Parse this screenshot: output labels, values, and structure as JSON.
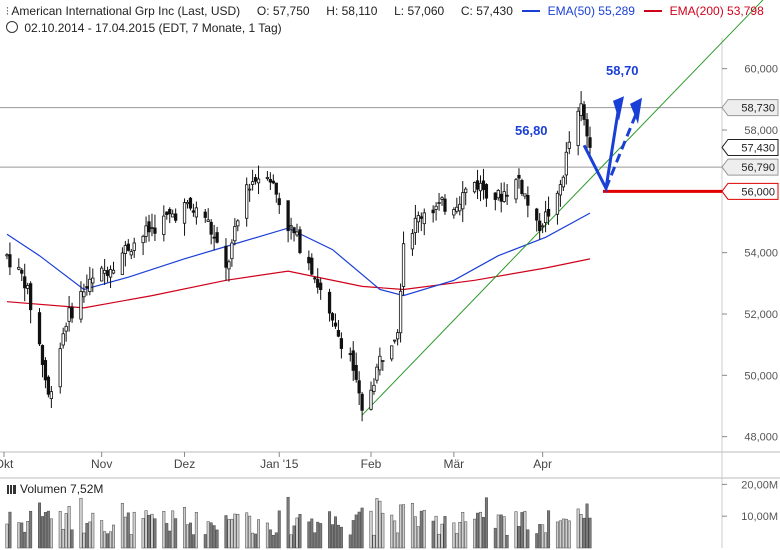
{
  "header": {
    "icon": "candlestick-icon",
    "title": "American International Grp Inc (Last, USD)",
    "open": "O: 57,750",
    "high": "H: 58,110",
    "low": "L: 57,060",
    "close": "C: 57,430",
    "ema50_label": "EMA(50)",
    "ema50_value": "55,289",
    "ema200_label": "EMA(200)",
    "ema200_value": "53,798",
    "clock_icon": "clock-icon",
    "range": "02.10.2014 - 17.04.2015 (EDT, 7 Monate, 1 Tag)"
  },
  "annotations": {
    "level_5680": "56,80",
    "target_5870": "58,70"
  },
  "volume": {
    "icon": "bar-chart-icon",
    "label": "Volumen",
    "value": "7,52M",
    "ticks": [
      "20,00M",
      "10,00M"
    ]
  },
  "colors": {
    "ema50": "#1a3fd6",
    "ema200": "#d0021b",
    "trendline": "#2e9a2e",
    "arrow": "#1a3fd6",
    "support": "#e00000",
    "candle": "#111111",
    "volume_bar": "#7a7a7a"
  },
  "chart_data": {
    "type": "candlestick",
    "title": "American International Grp Inc (Last, USD)",
    "x_range": [
      "02.10.2014",
      "17.04.2015"
    ],
    "ylim": [
      47.5,
      61.0
    ],
    "yticks": [
      "60,000",
      "58,000",
      "54,000",
      "52,000",
      "50,000",
      "48,000"
    ],
    "xticks": [
      "Okt",
      "Nov",
      "Dez",
      "Jan '15",
      "Feb",
      "Mär",
      "Apr"
    ],
    "price_labels": [
      "58,730",
      "57,430",
      "56,790",
      "56,000"
    ],
    "horizontal_levels": [
      58.73,
      56.79
    ],
    "support_level": 56.0,
    "last": {
      "open": 57.75,
      "high": 58.11,
      "low": 57.06,
      "close": 57.43
    },
    "ema50_last": 55.289,
    "ema200_last": 53.798,
    "close_path": [
      {
        "date": "2014-10-02",
        "close": 53.9
      },
      {
        "date": "2014-10-08",
        "close": 53.1
      },
      {
        "date": "2014-10-13",
        "close": 51.0
      },
      {
        "date": "2014-10-16",
        "close": 49.3
      },
      {
        "date": "2014-10-22",
        "close": 51.8
      },
      {
        "date": "2014-10-28",
        "close": 52.8
      },
      {
        "date": "2014-11-04",
        "close": 53.4
      },
      {
        "date": "2014-11-12",
        "close": 54.2
      },
      {
        "date": "2014-11-20",
        "close": 54.8
      },
      {
        "date": "2014-12-01",
        "close": 55.5
      },
      {
        "date": "2014-12-08",
        "close": 55.2
      },
      {
        "date": "2014-12-15",
        "close": 53.4
      },
      {
        "date": "2014-12-22",
        "close": 56.2
      },
      {
        "date": "2014-12-29",
        "close": 56.7
      },
      {
        "date": "2015-01-05",
        "close": 54.9
      },
      {
        "date": "2015-01-12",
        "close": 53.8
      },
      {
        "date": "2015-01-20",
        "close": 51.6
      },
      {
        "date": "2015-01-26",
        "close": 50.7
      },
      {
        "date": "2015-01-30",
        "close": 48.7
      },
      {
        "date": "2015-02-05",
        "close": 50.5
      },
      {
        "date": "2015-02-11",
        "close": 51.6
      },
      {
        "date": "2015-02-13",
        "close": 54.4
      },
      {
        "date": "2015-02-20",
        "close": 55.4
      },
      {
        "date": "2015-03-02",
        "close": 55.6
      },
      {
        "date": "2015-03-09",
        "close": 56.3
      },
      {
        "date": "2015-03-17",
        "close": 55.8
      },
      {
        "date": "2015-03-24",
        "close": 56.4
      },
      {
        "date": "2015-03-30",
        "close": 54.8
      },
      {
        "date": "2015-04-06",
        "close": 55.7
      },
      {
        "date": "2015-04-10",
        "close": 57.6
      },
      {
        "date": "2015-04-14",
        "close": 58.7
      },
      {
        "date": "2015-04-17",
        "close": 57.43
      }
    ],
    "ema50_path": [
      {
        "date": "2014-10-02",
        "close": 54.6
      },
      {
        "date": "2014-10-13",
        "close": 53.9
      },
      {
        "date": "2014-10-28",
        "close": 52.8
      },
      {
        "date": "2014-11-12",
        "close": 53.2
      },
      {
        "date": "2014-12-01",
        "close": 53.8
      },
      {
        "date": "2014-12-15",
        "close": 54.2
      },
      {
        "date": "2015-01-05",
        "close": 54.8
      },
      {
        "date": "2015-01-20",
        "close": 54.1
      },
      {
        "date": "2015-02-05",
        "close": 52.8
      },
      {
        "date": "2015-02-13",
        "close": 52.6
      },
      {
        "date": "2015-03-02",
        "close": 53.1
      },
      {
        "date": "2015-03-17",
        "close": 53.9
      },
      {
        "date": "2015-04-02",
        "close": 54.5
      },
      {
        "date": "2015-04-17",
        "close": 55.289
      }
    ],
    "ema200_path": [
      {
        "date": "2014-10-02",
        "close": 52.4
      },
      {
        "date": "2014-10-28",
        "close": 52.2
      },
      {
        "date": "2014-11-20",
        "close": 52.6
      },
      {
        "date": "2014-12-15",
        "close": 53.1
      },
      {
        "date": "2015-01-05",
        "close": 53.4
      },
      {
        "date": "2015-01-30",
        "close": 52.9
      },
      {
        "date": "2015-02-13",
        "close": 52.8
      },
      {
        "date": "2015-03-09",
        "close": 53.1
      },
      {
        "date": "2015-04-02",
        "close": 53.5
      },
      {
        "date": "2015-04-17",
        "close": 53.798
      }
    ],
    "trendline": [
      {
        "date": "2015-01-30",
        "close": 48.7
      },
      {
        "date": "2015-04-17",
        "close": 56.4
      }
    ]
  }
}
